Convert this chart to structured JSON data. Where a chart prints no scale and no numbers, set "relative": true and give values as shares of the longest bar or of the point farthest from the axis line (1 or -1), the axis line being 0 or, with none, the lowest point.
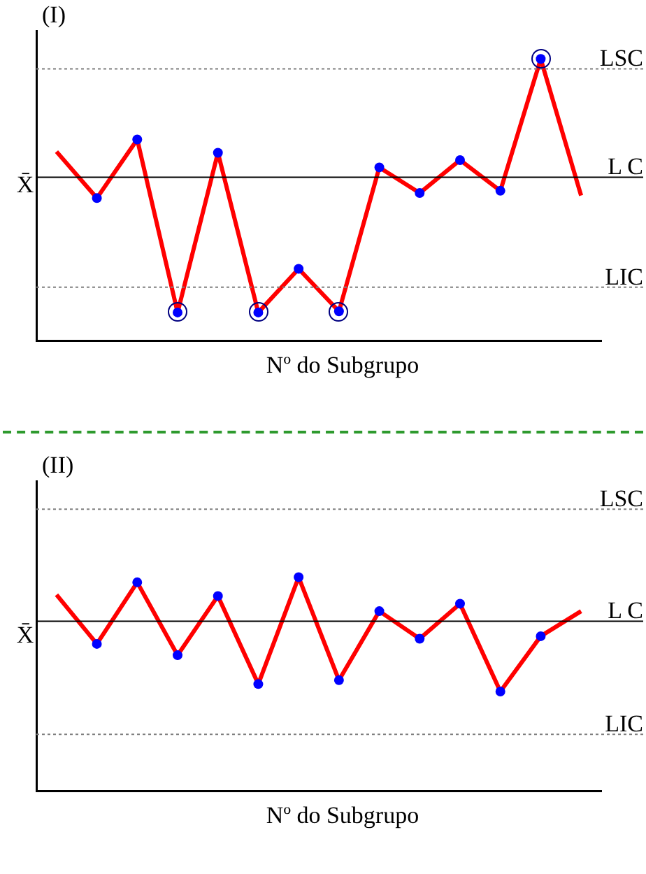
{
  "chart_data": [
    {
      "type": "line",
      "title": "(I)",
      "xlabel": "Nº do Subgrupo",
      "ylabel": "X̄",
      "relative": true,
      "color": "#ff0000",
      "marker": "circle",
      "categories": [
        null,
        null,
        null,
        null,
        null,
        null,
        null,
        null,
        null,
        null,
        null,
        null,
        null,
        null
      ],
      "values": [
        0.671,
        0.506,
        0.714,
        0.1,
        0.667,
        0.1,
        0.255,
        0.104,
        0.615,
        0.524,
        0.641,
        0.532,
        1,
        0.515
      ],
      "ref_lines": [
        {
          "axis": "y",
          "value": 0.965,
          "label": "LSC",
          "color": "#808080",
          "line_style": "dotted"
        },
        {
          "axis": "y",
          "value": 0.58,
          "label": "L C",
          "color": "#000000",
          "line_style": "solid"
        },
        {
          "axis": "y",
          "value": 0.19,
          "label": "LIC",
          "color": "#808080",
          "line_style": "dotted"
        }
      ]
    },
    {
      "type": "line",
      "title": "(II)",
      "xlabel": "Nº do Subgrupo",
      "ylabel": "X̄",
      "relative": true,
      "color": "#ff0000",
      "marker": "circle",
      "categories": [
        null,
        null,
        null,
        null,
        null,
        null,
        null,
        null,
        null,
        null,
        null,
        null,
        null,
        null
      ],
      "values": [
        0.918,
        0.688,
        0.976,
        0.635,
        0.912,
        0.5,
        1,
        0.518,
        0.841,
        0.712,
        0.876,
        0.465,
        0.724,
        0.841
      ],
      "ref_lines": [
        {
          "axis": "y",
          "value": 1.318,
          "label": "LSC",
          "color": "#808080",
          "line_style": "dotted"
        },
        {
          "axis": "y",
          "value": 0.794,
          "label": "L C",
          "color": "#000000",
          "line_style": "solid"
        },
        {
          "axis": "y",
          "value": 0.265,
          "label": "LIC",
          "color": "#808080",
          "line_style": "dotted"
        }
      ]
    }
  ]
}
